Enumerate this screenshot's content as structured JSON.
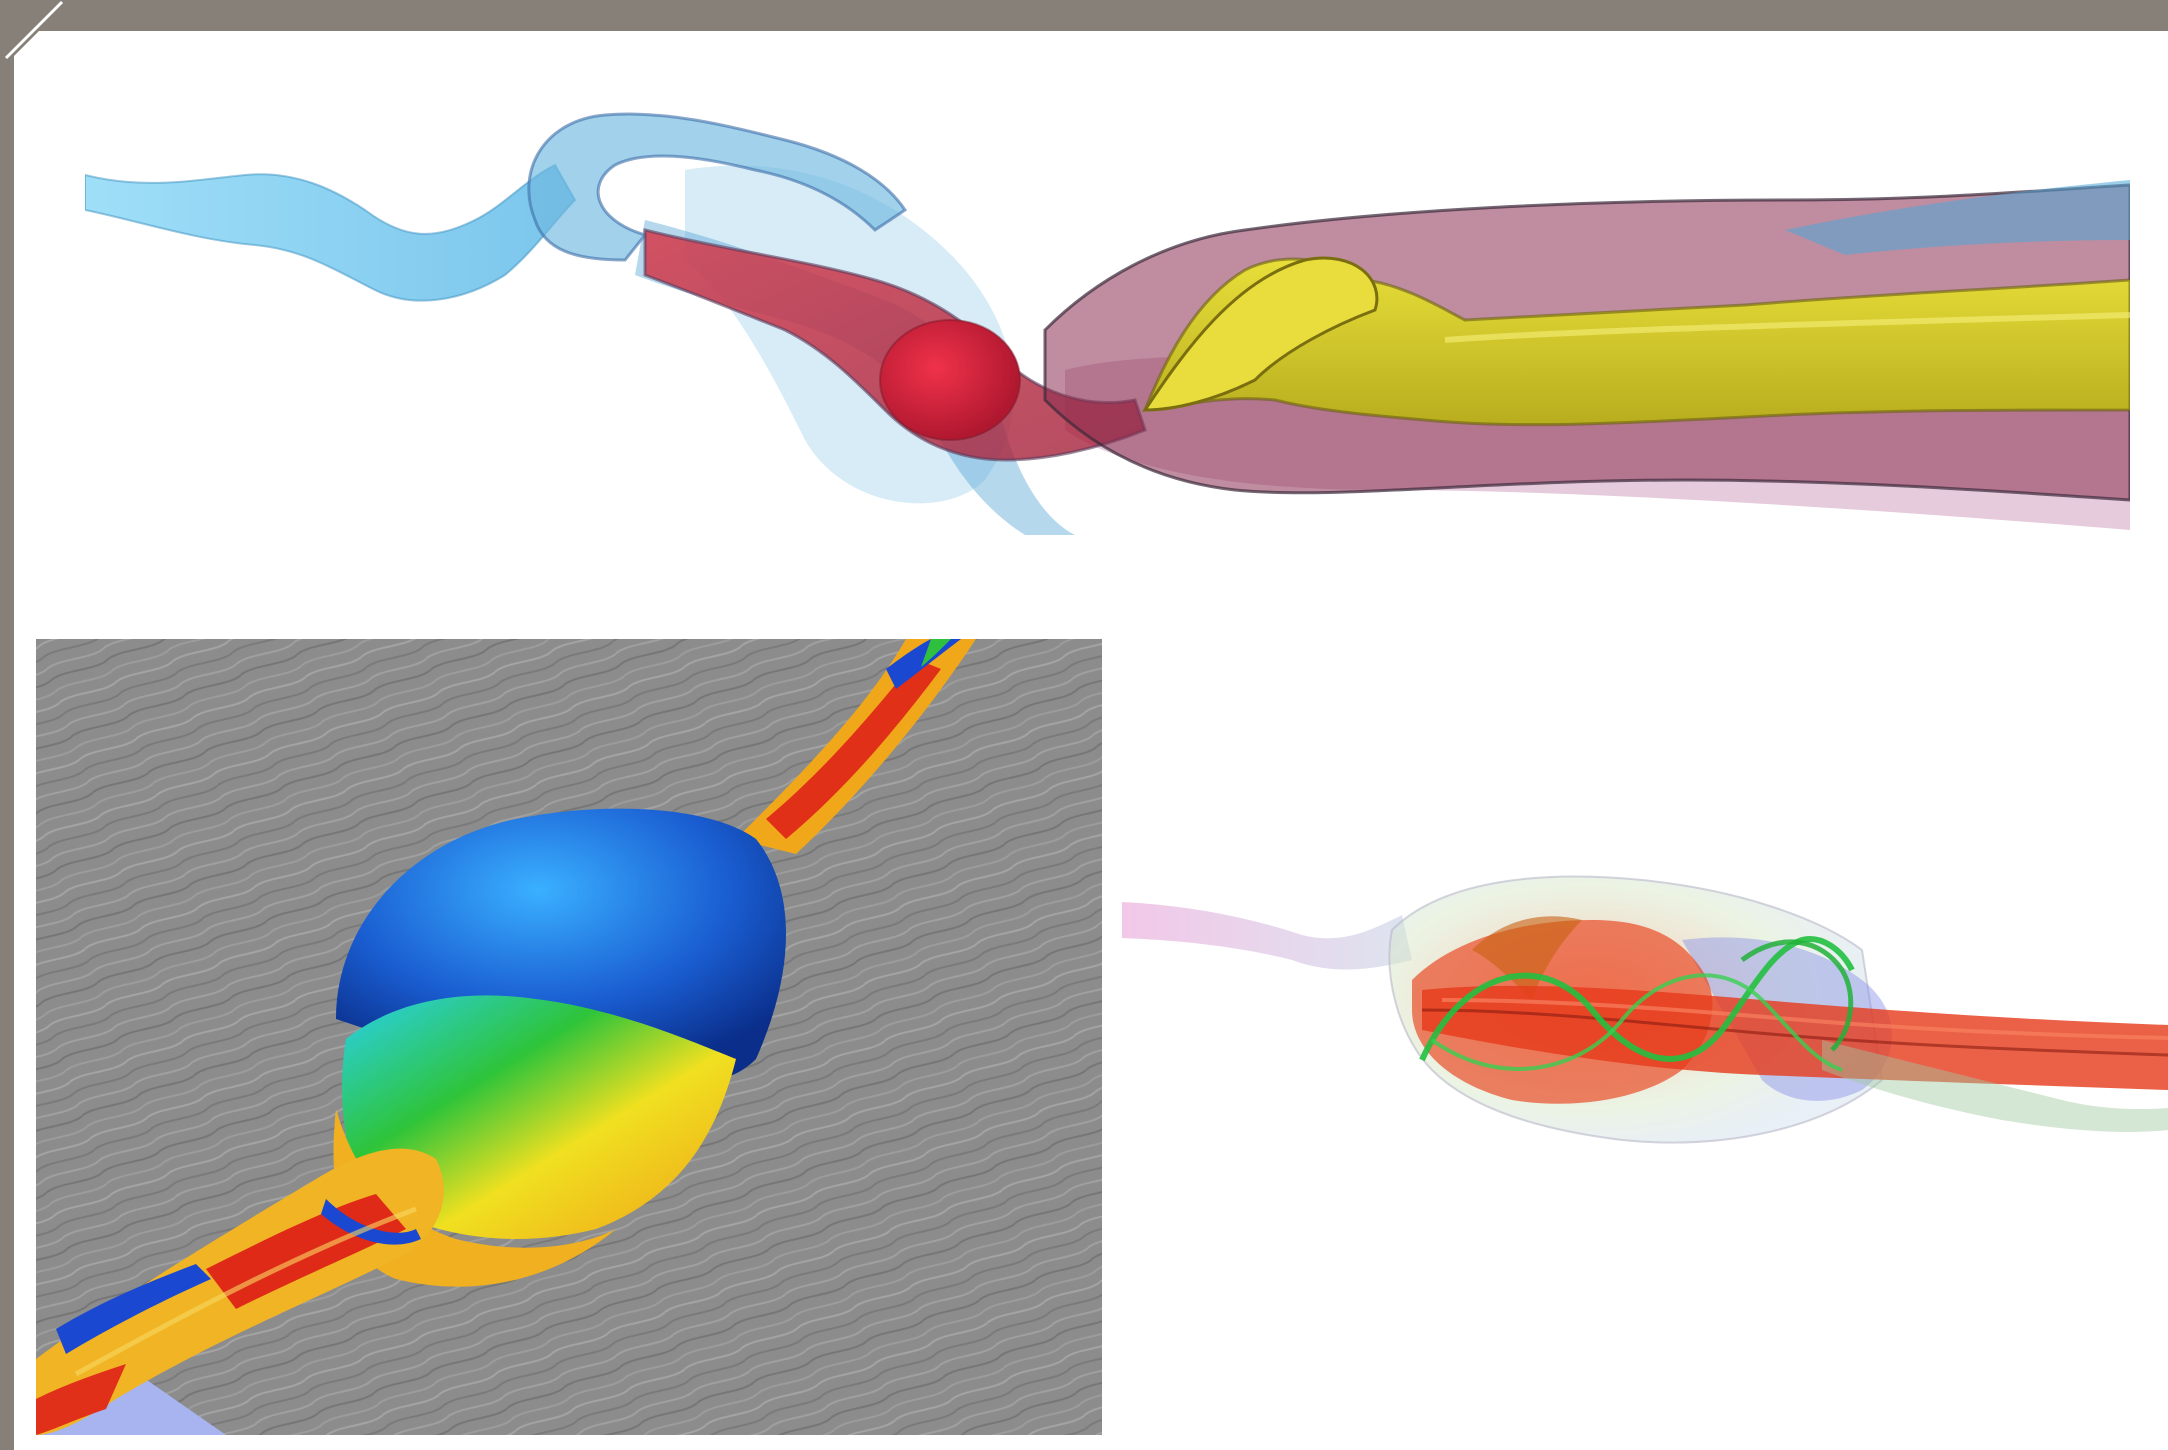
{
  "panels": [
    {
      "id": "top-panel",
      "content": "flow-surface-visualization"
    },
    {
      "id": "bottom-left-panel",
      "content": "colored-stream-surface-over-line-integral-texture"
    },
    {
      "id": "bottom-right-panel",
      "content": "transparent-vortex-breakdown-surface"
    }
  ],
  "colors": {
    "frame": "#868079",
    "background": "#ffffff",
    "top_blue": "#5fc4ee",
    "top_red": "#c8283c",
    "top_yellow": "#d9cc2a",
    "lic_gray": "#8a8a8a",
    "surface_blue": "#1d5fd6",
    "surface_yellow": "#f2d21c",
    "surface_red": "#e0301a",
    "surface_green": "#22c23a"
  }
}
